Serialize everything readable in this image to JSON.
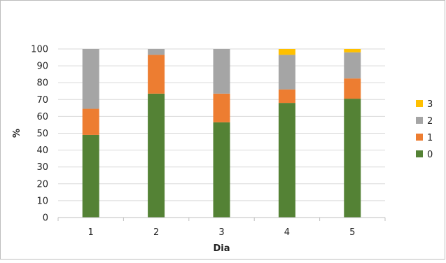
{
  "chart_data": {
    "type": "bar",
    "stacked": true,
    "title": "",
    "xlabel": "Dia",
    "ylabel": "%",
    "ylim": [
      0,
      100
    ],
    "ytick_step": 10,
    "grid": true,
    "legend_position": "right",
    "categories": [
      "1",
      "2",
      "3",
      "4",
      "5"
    ],
    "series": [
      {
        "name": "0",
        "color": "#548235",
        "values": [
          49,
          73.5,
          56.5,
          68,
          70.5
        ]
      },
      {
        "name": "1",
        "color": "#ed7d31",
        "values": [
          15.5,
          23,
          17,
          8,
          12
        ]
      },
      {
        "name": "2",
        "color": "#a5a5a5",
        "values": [
          35.5,
          3.5,
          26.5,
          20.5,
          15.5
        ]
      },
      {
        "name": "3",
        "color": "#ffc000",
        "values": [
          0,
          0,
          0,
          3.5,
          2
        ]
      }
    ]
  }
}
